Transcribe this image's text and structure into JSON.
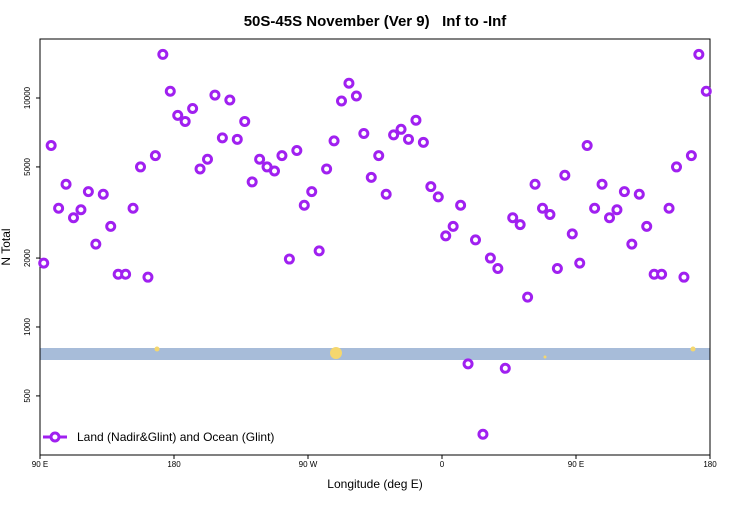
{
  "chart_data": {
    "type": "scatter",
    "title": "50S-45S November (Ver 9)   Inf to -Inf",
    "x_label": "Longitude (deg E)",
    "y_label": "N Total",
    "y_scale": "log",
    "legend": "bottom left",
    "xlim": [
      90,
      540
    ],
    "ylim": [
      276,
      18100
    ],
    "xticks": [
      {
        "value": 90,
        "label": "90 E"
      },
      180,
      {
        "value": 270,
        "label": "90 W"
      },
      {
        "value": 360,
        "label": "0"
      },
      {
        "value": 450,
        "label": "90 E"
      },
      {
        "value": 540,
        "label": "180"
      }
    ],
    "yticks": [
      500,
      1000,
      2000,
      5000,
      10000
    ],
    "series": [
      {
        "name": "Land (Nadir&Glint) and Ocean (Glint)",
        "color": "#a020f0",
        "x": [
          92.5,
          97.5,
          102.5,
          107.5,
          112.5,
          117.5,
          122.5,
          127.5,
          132.5,
          137.5,
          142.5,
          147.5,
          152.5,
          157.5,
          162.5,
          167.5,
          172.5,
          177.5,
          182.5,
          187.5,
          192.5,
          197.5,
          202.5,
          207.5,
          212.5,
          217.5,
          222.5,
          227.5,
          232.5,
          237.5,
          242.5,
          247.5,
          252.5,
          257.5,
          262.5,
          267.5,
          272.5,
          277.5,
          282.5,
          287.5,
          292.5,
          297.5,
          302.5,
          307.5,
          312.5,
          317.5,
          322.5,
          327.5,
          332.5,
          337.5,
          342.5,
          347.5,
          352.5,
          357.5,
          362.5,
          367.5,
          372.5,
          377.5,
          382.5,
          387.5,
          392.5,
          397.5,
          402.5,
          407.5,
          412.5,
          417.5,
          422.5,
          427.5,
          432.5,
          437.5,
          442.5,
          447.5,
          452.5,
          457.5,
          462.5,
          467.5,
          472.5,
          477.5,
          482.5,
          487.5,
          492.5,
          497.5,
          502.5,
          507.5,
          512.5,
          517.5,
          522.5,
          527.5,
          532.5,
          537.5
        ],
        "values": [
          1900,
          6200,
          3300,
          4200,
          3000,
          3250,
          3900,
          2300,
          3800,
          2750,
          1700,
          1700,
          3300,
          5000,
          1650,
          5600,
          15500,
          10700,
          8400,
          7900,
          9000,
          4900,
          5400,
          10300,
          6700,
          9800,
          6600,
          7900,
          4300,
          5400,
          5000,
          4800,
          5600,
          1980,
          5900,
          3400,
          3900,
          2150,
          4900,
          6500,
          9700,
          11600,
          10200,
          7000,
          4500,
          5600,
          3800,
          6900,
          7300,
          6600,
          8000,
          6400,
          4100,
          3700,
          2500,
          2750,
          3400,
          690,
          2400,
          340,
          2000,
          1800,
          660,
          3000,
          2800,
          1350,
          4200,
          3300,
          3100,
          1800,
          4600,
          2550,
          1900,
          6200,
          3300,
          4200,
          3000,
          3250,
          3900,
          2300,
          3800,
          2750,
          1700,
          1700,
          3300,
          5000,
          1650,
          5600,
          15500,
          10700
        ]
      }
    ]
  }
}
